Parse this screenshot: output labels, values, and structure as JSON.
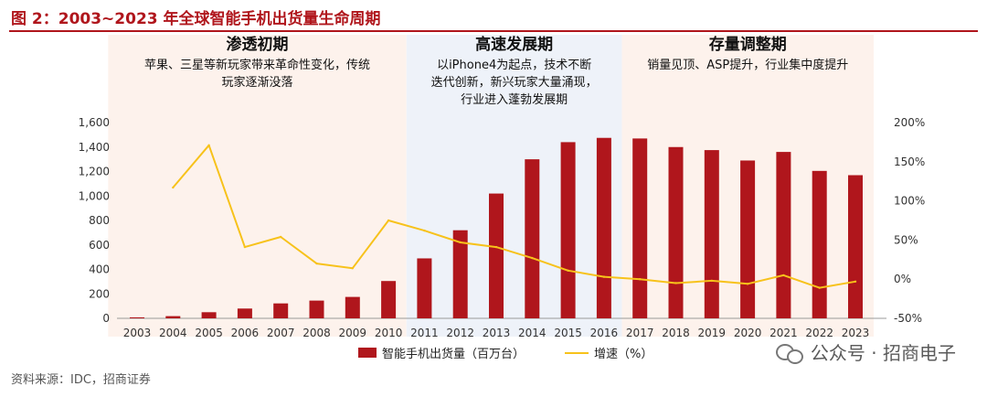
{
  "figure": {
    "title": "图 2：2003~2023 年全球智能手机出货量生命周期",
    "source": "资料来源：IDC，招商证券",
    "watermark": "公众号 · 招商电子"
  },
  "periods": [
    {
      "title": "渗透初期",
      "desc_lines": [
        "苹果、三星等新玩家带来革命性变化，传统",
        "玩家逐渐没落"
      ],
      "band_color": "#fdf2ec"
    },
    {
      "title": "高速发展期",
      "desc_lines": [
        "以iPhone4为起点，技术不断",
        "迭代创新，新兴玩家大量涌现，",
        "行业进入蓬勃发展期"
      ],
      "band_color": "#eef2f9"
    },
    {
      "title": "存量调整期",
      "desc_lines": [
        "销量见顶、ASP提升，行业集中度提升"
      ],
      "band_color": "#fdf2ec"
    }
  ],
  "colors": {
    "bar": "#b0161c",
    "line": "#f7c21b",
    "axis": "#999999"
  },
  "chart_data": {
    "type": "bar",
    "categories": [
      "2003",
      "2004",
      "2005",
      "2006",
      "2007",
      "2008",
      "2009",
      "2010",
      "2011",
      "2012",
      "2013",
      "2014",
      "2015",
      "2016",
      "2017",
      "2018",
      "2019",
      "2020",
      "2021",
      "2022",
      "2023"
    ],
    "series": [
      {
        "name": "智能手机出货量（百万台）",
        "type": "bar",
        "axis": "left",
        "values": [
          8,
          18,
          50,
          80,
          122,
          145,
          175,
          305,
          490,
          720,
          1020,
          1300,
          1440,
          1475,
          1470,
          1400,
          1375,
          1290,
          1360,
          1205,
          1170
        ]
      },
      {
        "name": "增速（%）",
        "type": "line",
        "axis": "right",
        "values": [
          null,
          117,
          171,
          41,
          54,
          20,
          14,
          75,
          62,
          47,
          41,
          27,
          11,
          3,
          0,
          -5,
          -2,
          -6,
          5,
          -11,
          -3
        ]
      }
    ],
    "y_left": {
      "ylim": [
        0,
        1600
      ],
      "ticks": [
        "0",
        "200",
        "400",
        "600",
        "800",
        "1,000",
        "1,200",
        "1,400",
        "1,600"
      ]
    },
    "y_right": {
      "ylim": [
        -50,
        200
      ],
      "ticks": [
        "-50%",
        "0%",
        "50%",
        "100%",
        "150%",
        "200%"
      ]
    },
    "legend_position": "bottom",
    "grid": false
  }
}
